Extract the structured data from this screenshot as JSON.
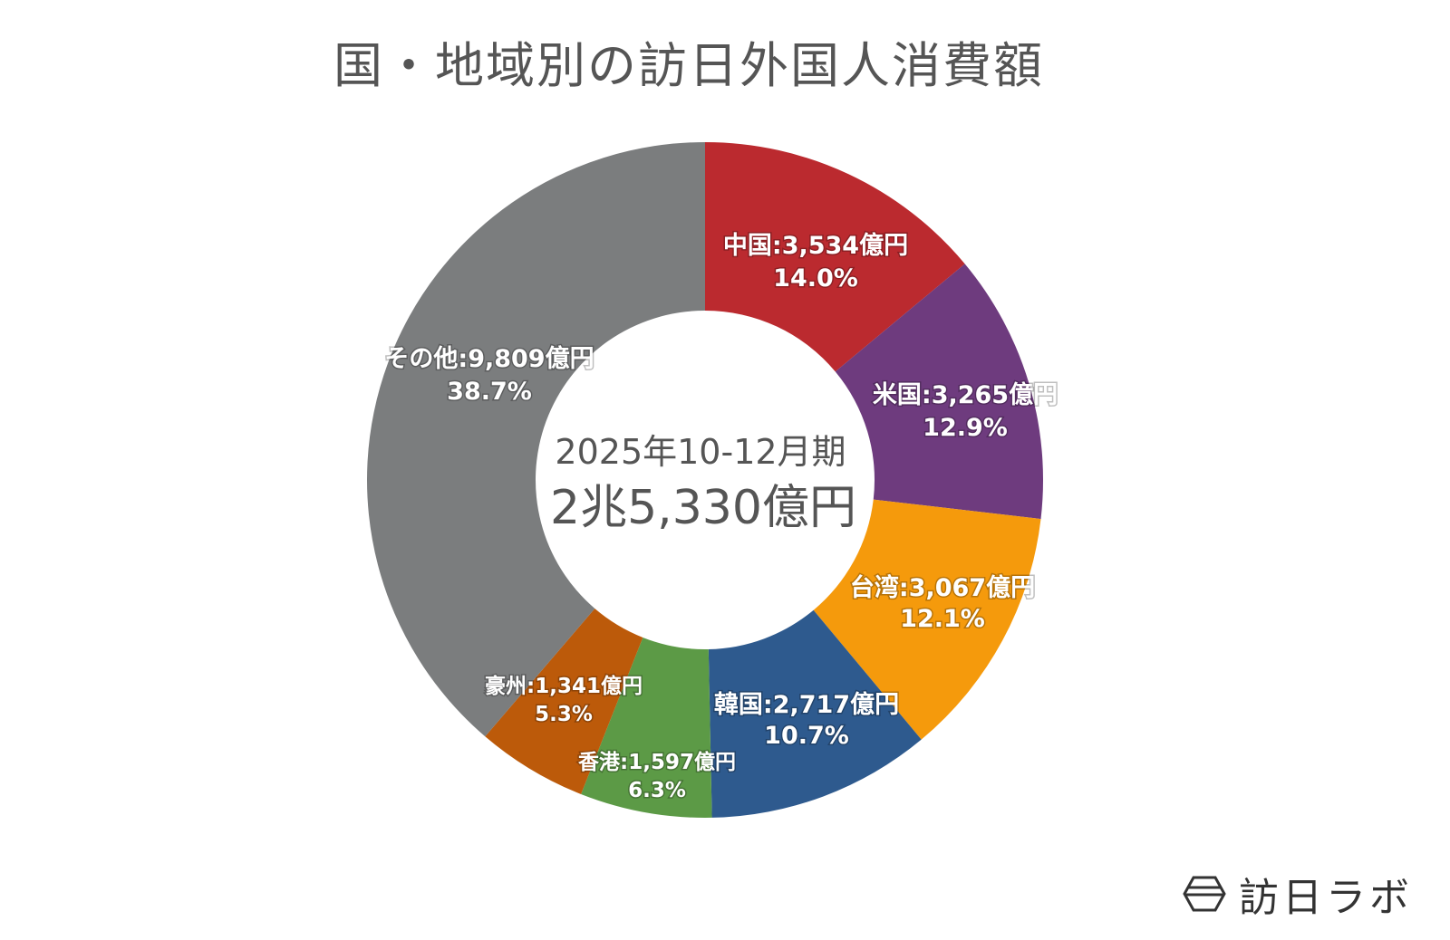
{
  "title": "国・地域別の訪日外国人消費額",
  "chart_data": {
    "type": "pie",
    "donut": true,
    "title": "国・地域別の訪日外国人消費額",
    "center_text": [
      "2025年10-12月期",
      "2兆5,330億円"
    ],
    "unit": "億円",
    "start": "top",
    "direction": "clockwise",
    "slices": [
      {
        "name": "中国",
        "value": 3534,
        "percent": 14.0,
        "label": "中国:3,534億円",
        "pct_label": "14.0%",
        "color": "#BB2A2F"
      },
      {
        "name": "米国",
        "value": 3265,
        "percent": 12.9,
        "label": "米国:3,265億円",
        "pct_label": "12.9%",
        "color": "#6E3B7E"
      },
      {
        "name": "台湾",
        "value": 3067,
        "percent": 12.1,
        "label": "台湾:3,067億円",
        "pct_label": "12.1%",
        "color": "#F59A0C"
      },
      {
        "name": "韓国",
        "value": 2717,
        "percent": 10.7,
        "label": "韓国:2,717億円",
        "pct_label": "10.7%",
        "color": "#2E5A8E"
      },
      {
        "name": "香港",
        "value": 1597,
        "percent": 6.3,
        "label": "香港:1,597億円",
        "pct_label": "6.3%",
        "color": "#5C9A46"
      },
      {
        "name": "豪州",
        "value": 1341,
        "percent": 5.3,
        "label": "豪州:1,341億円",
        "pct_label": "5.3%",
        "color": "#BC5A0A"
      },
      {
        "name": "その他",
        "value": 9809,
        "percent": 38.7,
        "label": "その他:9,809億円",
        "pct_label": "38.7%",
        "color": "#7B7D7E"
      }
    ]
  },
  "logo": {
    "text": "訪日ラボ",
    "icon": "hexagon-logo-icon"
  }
}
